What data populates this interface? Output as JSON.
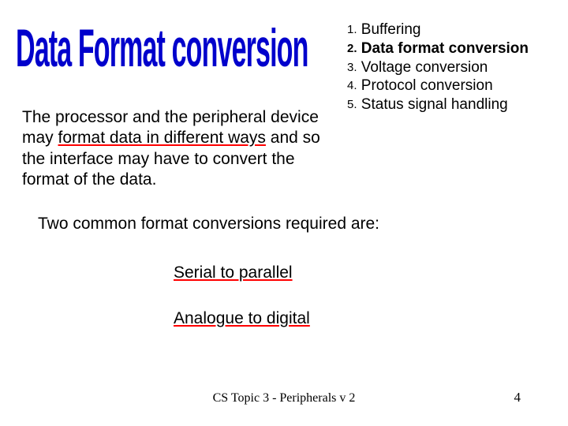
{
  "title": "Data Format conversion",
  "list": {
    "items": [
      {
        "num": "1.",
        "text": "Buffering",
        "bold": false
      },
      {
        "num": "2.",
        "text": "Data format conversion",
        "bold": true
      },
      {
        "num": "3.",
        "text": "Voltage conversion",
        "bold": false
      },
      {
        "num": "4.",
        "text": "Protocol conversion",
        "bold": false
      },
      {
        "num": "5.",
        "text": "Status signal handling",
        "bold": false
      }
    ]
  },
  "body": {
    "pre1": "The processor and the peripheral device may ",
    "u1": "format data in different ways",
    "post1": " and so the interface may have to convert the format of the data."
  },
  "subhead": "Two common format conversions required are:",
  "conversions": {
    "c1": "Serial to parallel",
    "c2": "Analogue to digital"
  },
  "footer": "CS Topic 3 - Peripherals v 2",
  "pagenum": "4",
  "colors": {
    "title": "#0000cc",
    "underline": "#ff0000",
    "text": "#000000",
    "background": "#ffffff"
  },
  "typography": {
    "title_fontsize": 40,
    "body_fontsize": 21,
    "list_fontsize": 19,
    "footer_fontsize": 16
  }
}
